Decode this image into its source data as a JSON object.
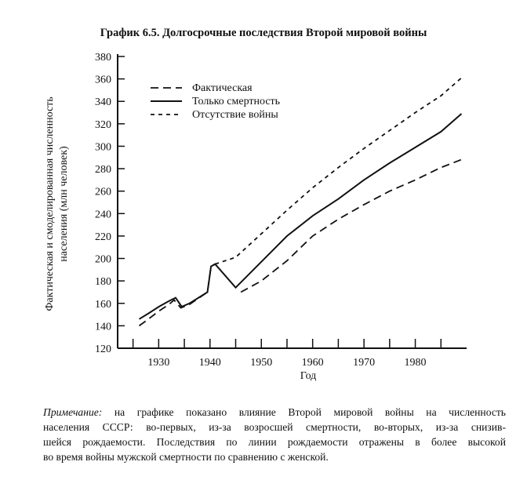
{
  "chart_data": {
    "type": "line",
    "title": "График 6.5. Долгосрочные последствия Второй мировой войны",
    "xlabel": "Год",
    "ylabel": [
      "Фактическая и смоделированная численность",
      "населения (млн человек)"
    ],
    "xlim": [
      1922,
      1990
    ],
    "ylim": [
      120,
      380
    ],
    "xticks": [
      1930,
      1940,
      1950,
      1960,
      1970,
      1980
    ],
    "xticks_minor": [
      1925,
      1935,
      1945,
      1955,
      1965,
      1975,
      1985
    ],
    "yticks": [
      120,
      140,
      160,
      180,
      200,
      220,
      240,
      260,
      280,
      300,
      320,
      340,
      360,
      380
    ],
    "grid": false,
    "legend_position": "top-left",
    "series": [
      {
        "name": "Фактическая",
        "style": "long-dash",
        "points": [
          [
            1926.2,
            140
          ],
          [
            1928,
            146
          ],
          [
            1930,
            153
          ],
          [
            1932,
            159
          ],
          [
            1933,
            163
          ],
          [
            1934.3,
            156
          ],
          [
            1936,
            159
          ],
          [
            1939.5,
            170
          ],
          [
            1940.2,
            193
          ],
          [
            1941,
            195
          ],
          null,
          [
            1946,
            170
          ],
          [
            1950,
            180
          ],
          [
            1955,
            198
          ],
          [
            1960,
            220
          ],
          [
            1965,
            235
          ],
          [
            1970,
            248
          ],
          [
            1975,
            260
          ],
          [
            1980,
            270
          ],
          [
            1985,
            281
          ],
          [
            1989.5,
            289
          ]
        ]
      },
      {
        "name": "Только смертность",
        "style": "solid",
        "points": [
          [
            1926.2,
            146
          ],
          [
            1928,
            151
          ],
          [
            1930,
            157
          ],
          [
            1932,
            162
          ],
          [
            1933.3,
            165
          ],
          [
            1934.5,
            157
          ],
          [
            1936,
            160
          ],
          [
            1939.5,
            170
          ],
          [
            1940.2,
            193
          ],
          [
            1941,
            195
          ],
          [
            1945,
            174
          ],
          [
            1950,
            197
          ],
          [
            1955,
            220
          ],
          [
            1960,
            238
          ],
          [
            1965,
            253
          ],
          [
            1970,
            270
          ],
          [
            1975,
            285
          ],
          [
            1980,
            299
          ],
          [
            1985,
            313
          ],
          [
            1989,
            329
          ]
        ]
      },
      {
        "name": "Отсутствие войны",
        "style": "short-dash",
        "points": [
          [
            1941,
            195
          ],
          [
            1945,
            201
          ],
          [
            1950,
            222
          ],
          [
            1955,
            243
          ],
          [
            1960,
            263
          ],
          [
            1965,
            281
          ],
          [
            1970,
            298
          ],
          [
            1975,
            314
          ],
          [
            1980,
            330
          ],
          [
            1985,
            345
          ],
          [
            1989,
            361
          ]
        ]
      }
    ]
  },
  "note": {
    "label": "Примечание:",
    "lines": [
      " на графике показано влияние Второй мировой войны на численность",
      "населения СССР: во-первых, из-за возросшей смертности, во-вторых, из-за снизив-",
      "шейся рождаемости. Последствия по линии рождаемости отражены в более высокой",
      "во время войны мужской смертности по сравнению с женской."
    ]
  }
}
